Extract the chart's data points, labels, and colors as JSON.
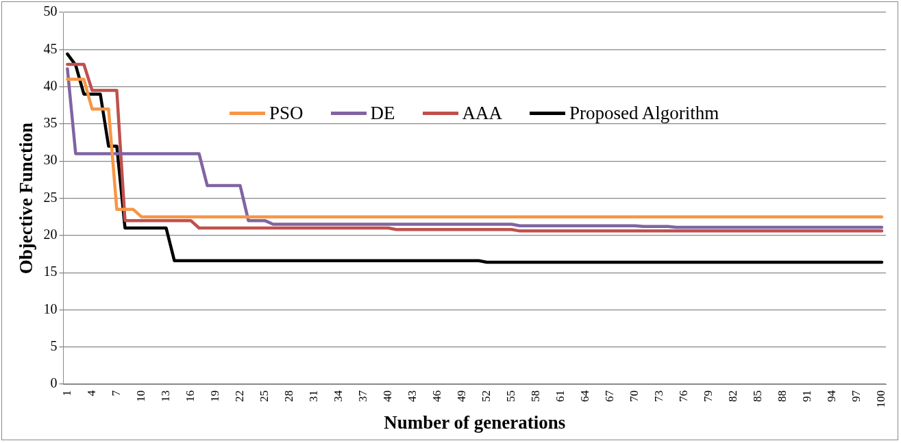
{
  "chart_data": {
    "type": "line",
    "xlabel": "Number of generations",
    "ylabel": "Objective Function",
    "categories": [
      "1",
      null,
      null,
      "4",
      null,
      null,
      "7",
      null,
      null,
      "10",
      null,
      null,
      "13",
      null,
      null,
      "16",
      null,
      null,
      "19",
      null,
      null,
      "22",
      null,
      null,
      "25",
      null,
      null,
      "28",
      null,
      null,
      "31",
      null,
      null,
      "34",
      null,
      null,
      "37",
      null,
      null,
      "40",
      null,
      null,
      "43",
      null,
      null,
      "46",
      null,
      null,
      "49",
      null,
      null,
      "52",
      null,
      null,
      "55",
      null,
      null,
      "58",
      null,
      null,
      "61",
      null,
      null,
      "64",
      null,
      null,
      "67",
      null,
      null,
      "70",
      null,
      null,
      "73",
      null,
      null,
      "76",
      null,
      null,
      "79",
      null,
      null,
      "82",
      null,
      null,
      "85",
      null,
      null,
      "88",
      null,
      null,
      "91",
      null,
      null,
      "94",
      null,
      null,
      "97",
      null,
      null,
      "100"
    ],
    "ylim": [
      0,
      50
    ],
    "yticks": [
      0,
      5,
      10,
      15,
      20,
      25,
      30,
      35,
      40,
      45,
      50
    ],
    "grid": "y",
    "legend": "top",
    "marker": "none",
    "line_style": "solid",
    "series": [
      {
        "name": "PSO",
        "color": "#f79646",
        "values": [
          41,
          41,
          41,
          37,
          37,
          37,
          23.5,
          23.5,
          23.5,
          22.5,
          22.5,
          22.5,
          22.5,
          22.5,
          22.5,
          22.5,
          22.5,
          22.5,
          22.5,
          22.5,
          22.5,
          22.5,
          22.5,
          22.5,
          22.5,
          22.5,
          22.5,
          22.5,
          22.5,
          22.5,
          22.5,
          22.5,
          22.5,
          22.5,
          22.5,
          22.5,
          22.5,
          22.5,
          22.5,
          22.5,
          22.5,
          22.5,
          22.5,
          22.5,
          22.5,
          22.5,
          22.5,
          22.5,
          22.5,
          22.5,
          22.5,
          22.5,
          22.5,
          22.5,
          22.5,
          22.5,
          22.5,
          22.5,
          22.5,
          22.5,
          22.5,
          22.5,
          22.5,
          22.5,
          22.5,
          22.5,
          22.5,
          22.5,
          22.5,
          22.5,
          22.5,
          22.5,
          22.5,
          22.5,
          22.5,
          22.5,
          22.5,
          22.5,
          22.5,
          22.5,
          22.5,
          22.5,
          22.5,
          22.5,
          22.5,
          22.5,
          22.5,
          22.5,
          22.5,
          22.5,
          22.5,
          22.5,
          22.5,
          22.5,
          22.5,
          22.5,
          22.5,
          22.5,
          22.5,
          22.5
        ]
      },
      {
        "name": "DE",
        "color": "#8064a2",
        "values": [
          42.4,
          31,
          31,
          31,
          31,
          31,
          31,
          31,
          31,
          31,
          31,
          31,
          31,
          31,
          31,
          31,
          31,
          26.7,
          26.7,
          26.7,
          26.7,
          26.7,
          22,
          22,
          22,
          21.5,
          21.5,
          21.5,
          21.5,
          21.5,
          21.5,
          21.5,
          21.5,
          21.5,
          21.5,
          21.5,
          21.5,
          21.5,
          21.5,
          21.5,
          21.5,
          21.5,
          21.5,
          21.5,
          21.5,
          21.5,
          21.5,
          21.5,
          21.5,
          21.5,
          21.5,
          21.5,
          21.5,
          21.5,
          21.5,
          21.3,
          21.3,
          21.3,
          21.3,
          21.3,
          21.3,
          21.3,
          21.3,
          21.3,
          21.3,
          21.3,
          21.3,
          21.3,
          21.3,
          21.3,
          21.2,
          21.2,
          21.2,
          21.2,
          21.1,
          21.1,
          21.1,
          21.1,
          21.1,
          21.1,
          21.1,
          21.1,
          21.1,
          21.1,
          21.1,
          21.1,
          21.1,
          21.1,
          21.1,
          21.1,
          21.1,
          21.1,
          21.1,
          21.1,
          21.1,
          21.1,
          21.1,
          21.1,
          21.1,
          21.1
        ]
      },
      {
        "name": "AAA",
        "color": "#c0504d",
        "values": [
          43,
          43,
          43,
          39.5,
          39.5,
          39.5,
          39.5,
          22,
          22,
          22,
          22,
          22,
          22,
          22,
          22,
          22,
          21,
          21,
          21,
          21,
          21,
          21,
          21,
          21,
          21,
          21,
          21,
          21,
          21,
          21,
          21,
          21,
          21,
          21,
          21,
          21,
          21,
          21,
          21,
          21,
          20.8,
          20.8,
          20.8,
          20.8,
          20.8,
          20.8,
          20.8,
          20.8,
          20.8,
          20.8,
          20.8,
          20.8,
          20.8,
          20.8,
          20.8,
          20.6,
          20.6,
          20.6,
          20.6,
          20.6,
          20.6,
          20.6,
          20.6,
          20.6,
          20.6,
          20.6,
          20.6,
          20.6,
          20.6,
          20.6,
          20.6,
          20.6,
          20.6,
          20.6,
          20.6,
          20.6,
          20.6,
          20.6,
          20.6,
          20.6,
          20.6,
          20.6,
          20.6,
          20.6,
          20.6,
          20.6,
          20.6,
          20.6,
          20.6,
          20.6,
          20.6,
          20.6,
          20.6,
          20.6,
          20.6,
          20.6,
          20.6,
          20.6,
          20.6,
          20.6
        ]
      },
      {
        "name": "Proposed Algorithm",
        "color": "#000000",
        "values": [
          44.4,
          42.9,
          39,
          39,
          39,
          32,
          32,
          21,
          21,
          21,
          21,
          21,
          21,
          16.6,
          16.6,
          16.6,
          16.6,
          16.6,
          16.6,
          16.6,
          16.6,
          16.6,
          16.6,
          16.6,
          16.6,
          16.6,
          16.6,
          16.6,
          16.6,
          16.6,
          16.6,
          16.6,
          16.6,
          16.6,
          16.6,
          16.6,
          16.6,
          16.6,
          16.6,
          16.6,
          16.6,
          16.6,
          16.6,
          16.6,
          16.6,
          16.6,
          16.6,
          16.6,
          16.6,
          16.6,
          16.6,
          16.4,
          16.4,
          16.4,
          16.4,
          16.4,
          16.4,
          16.4,
          16.4,
          16.4,
          16.4,
          16.4,
          16.4,
          16.4,
          16.4,
          16.4,
          16.4,
          16.4,
          16.4,
          16.4,
          16.4,
          16.4,
          16.4,
          16.4,
          16.4,
          16.4,
          16.4,
          16.4,
          16.4,
          16.4,
          16.4,
          16.4,
          16.4,
          16.4,
          16.4,
          16.4,
          16.4,
          16.4,
          16.4,
          16.4,
          16.4,
          16.4,
          16.4,
          16.4,
          16.4,
          16.4,
          16.4,
          16.4,
          16.4,
          16.4
        ]
      }
    ]
  }
}
